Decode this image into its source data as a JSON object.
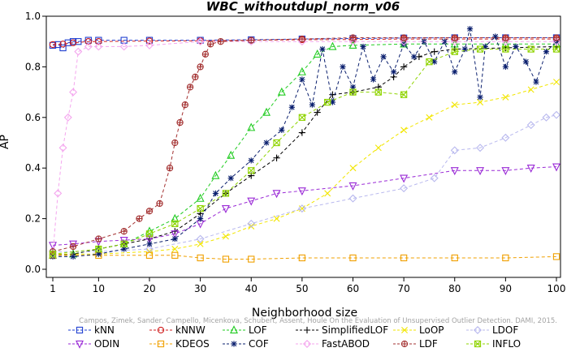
{
  "chart_data": {
    "type": "line",
    "title": "WBC_withoutdupl_norm_v06",
    "xlabel": "Neighborhood size",
    "ylabel": "AP",
    "xlim": [
      1,
      100
    ],
    "ylim": [
      0,
      1
    ],
    "xticks": [
      1,
      10,
      20,
      30,
      40,
      50,
      60,
      70,
      80,
      90,
      100
    ],
    "yticks": [
      0.0,
      0.2,
      0.4,
      0.6,
      0.8,
      1.0
    ],
    "xtick_labels": [
      "1",
      "10",
      "20",
      "30",
      "40",
      "50",
      "60",
      "70",
      "80",
      "90",
      "100"
    ],
    "ytick_labels": [
      "0.0",
      "0.2",
      "0.4",
      "0.6",
      "0.8",
      "1.0"
    ],
    "grid": false,
    "legend_position": "bottom",
    "watermark": "Campos, Zimek, Sander, Campello, Micenkova, Schubert, Assent, Houle On the Evaluation of Unsupervised Outlier Detection. DAMI, 2015.",
    "series": [
      {
        "name": "kNN",
        "color": "#1f3fd0",
        "marker": "square",
        "points": [
          [
            1,
            0.885
          ],
          [
            2,
            0.888
          ],
          [
            3,
            0.875
          ],
          [
            4,
            0.895
          ],
          [
            5,
            0.9
          ],
          [
            6,
            0.9
          ],
          [
            8,
            0.905
          ],
          [
            10,
            0.905
          ],
          [
            15,
            0.905
          ],
          [
            20,
            0.905
          ],
          [
            30,
            0.905
          ],
          [
            40,
            0.907
          ],
          [
            50,
            0.91
          ],
          [
            60,
            0.912
          ],
          [
            70,
            0.914
          ],
          [
            80,
            0.915
          ],
          [
            90,
            0.915
          ],
          [
            100,
            0.915
          ]
        ]
      },
      {
        "name": "kNNW",
        "color": "#d01f1f",
        "marker": "circle",
        "points": [
          [
            1,
            0.888
          ],
          [
            3,
            0.89
          ],
          [
            5,
            0.895
          ],
          [
            8,
            0.9
          ],
          [
            10,
            0.9
          ],
          [
            20,
            0.902
          ],
          [
            30,
            0.903
          ],
          [
            40,
            0.905
          ],
          [
            50,
            0.907
          ],
          [
            60,
            0.908
          ],
          [
            70,
            0.91
          ],
          [
            80,
            0.91
          ],
          [
            90,
            0.91
          ],
          [
            100,
            0.91
          ]
        ]
      },
      {
        "name": "LOF",
        "color": "#22cc22",
        "marker": "triangle-up",
        "points": [
          [
            1,
            0.055
          ],
          [
            5,
            0.06
          ],
          [
            10,
            0.08
          ],
          [
            15,
            0.1
          ],
          [
            20,
            0.15
          ],
          [
            25,
            0.2
          ],
          [
            30,
            0.28
          ],
          [
            33,
            0.37
          ],
          [
            36,
            0.45
          ],
          [
            40,
            0.56
          ],
          [
            43,
            0.62
          ],
          [
            46,
            0.7
          ],
          [
            50,
            0.78
          ],
          [
            53,
            0.85
          ],
          [
            56,
            0.88
          ],
          [
            60,
            0.885
          ],
          [
            70,
            0.89
          ],
          [
            80,
            0.89
          ],
          [
            90,
            0.89
          ],
          [
            100,
            0.89
          ]
        ]
      },
      {
        "name": "SimplifiedLOF",
        "color": "#000000",
        "marker": "plus",
        "points": [
          [
            1,
            0.055
          ],
          [
            5,
            0.06
          ],
          [
            10,
            0.08
          ],
          [
            15,
            0.1
          ],
          [
            20,
            0.12
          ],
          [
            25,
            0.15
          ],
          [
            30,
            0.22
          ],
          [
            35,
            0.3
          ],
          [
            40,
            0.37
          ],
          [
            45,
            0.44
          ],
          [
            50,
            0.54
          ],
          [
            53,
            0.62
          ],
          [
            56,
            0.69
          ],
          [
            60,
            0.7
          ],
          [
            65,
            0.72
          ],
          [
            68,
            0.76
          ],
          [
            70,
            0.8
          ],
          [
            73,
            0.84
          ],
          [
            76,
            0.86
          ],
          [
            80,
            0.87
          ],
          [
            90,
            0.875
          ],
          [
            100,
            0.88
          ]
        ]
      },
      {
        "name": "LoOP",
        "color": "#f2e600",
        "marker": "x",
        "points": [
          [
            1,
            0.06
          ],
          [
            10,
            0.06
          ],
          [
            20,
            0.07
          ],
          [
            25,
            0.08
          ],
          [
            30,
            0.1
          ],
          [
            35,
            0.13
          ],
          [
            40,
            0.17
          ],
          [
            45,
            0.2
          ],
          [
            50,
            0.24
          ],
          [
            55,
            0.3
          ],
          [
            60,
            0.4
          ],
          [
            65,
            0.48
          ],
          [
            70,
            0.55
          ],
          [
            75,
            0.6
          ],
          [
            80,
            0.65
          ],
          [
            85,
            0.66
          ],
          [
            90,
            0.68
          ],
          [
            95,
            0.71
          ],
          [
            100,
            0.74
          ]
        ]
      },
      {
        "name": "LDOF",
        "color": "#b8b8ee",
        "marker": "diamond",
        "points": [
          [
            1,
            0.07
          ],
          [
            10,
            0.07
          ],
          [
            20,
            0.08
          ],
          [
            30,
            0.12
          ],
          [
            40,
            0.18
          ],
          [
            50,
            0.24
          ],
          [
            60,
            0.28
          ],
          [
            70,
            0.32
          ],
          [
            76,
            0.36
          ],
          [
            80,
            0.47
          ],
          [
            85,
            0.48
          ],
          [
            90,
            0.52
          ],
          [
            95,
            0.57
          ],
          [
            98,
            0.6
          ],
          [
            100,
            0.61
          ]
        ]
      },
      {
        "name": "ODIN",
        "color": "#9a2ad6",
        "marker": "triangle-down",
        "points": [
          [
            1,
            0.095
          ],
          [
            5,
            0.1
          ],
          [
            10,
            0.11
          ],
          [
            15,
            0.115
          ],
          [
            20,
            0.12
          ],
          [
            25,
            0.14
          ],
          [
            30,
            0.18
          ],
          [
            35,
            0.24
          ],
          [
            40,
            0.27
          ],
          [
            45,
            0.3
          ],
          [
            50,
            0.31
          ],
          [
            60,
            0.33
          ],
          [
            70,
            0.36
          ],
          [
            80,
            0.39
          ],
          [
            85,
            0.39
          ],
          [
            90,
            0.39
          ],
          [
            95,
            0.4
          ],
          [
            100,
            0.405
          ]
        ]
      },
      {
        "name": "KDEOS",
        "color": "#f0a000",
        "marker": "square",
        "points": [
          [
            1,
            0.055
          ],
          [
            10,
            0.055
          ],
          [
            20,
            0.055
          ],
          [
            25,
            0.055
          ],
          [
            30,
            0.045
          ],
          [
            35,
            0.04
          ],
          [
            40,
            0.04
          ],
          [
            50,
            0.045
          ],
          [
            60,
            0.045
          ],
          [
            70,
            0.045
          ],
          [
            80,
            0.045
          ],
          [
            90,
            0.045
          ],
          [
            100,
            0.05
          ]
        ]
      },
      {
        "name": "COF",
        "color": "#0a1f6e",
        "marker": "star",
        "points": [
          [
            1,
            0.05
          ],
          [
            5,
            0.05
          ],
          [
            10,
            0.06
          ],
          [
            15,
            0.08
          ],
          [
            20,
            0.1
          ],
          [
            25,
            0.12
          ],
          [
            30,
            0.2
          ],
          [
            33,
            0.3
          ],
          [
            36,
            0.36
          ],
          [
            40,
            0.43
          ],
          [
            43,
            0.5
          ],
          [
            46,
            0.55
          ],
          [
            48,
            0.64
          ],
          [
            50,
            0.75
          ],
          [
            52,
            0.65
          ],
          [
            54,
            0.87
          ],
          [
            56,
            0.66
          ],
          [
            58,
            0.8
          ],
          [
            60,
            0.72
          ],
          [
            62,
            0.88
          ],
          [
            64,
            0.75
          ],
          [
            66,
            0.84
          ],
          [
            68,
            0.78
          ],
          [
            70,
            0.89
          ],
          [
            72,
            0.84
          ],
          [
            74,
            0.9
          ],
          [
            76,
            0.82
          ],
          [
            78,
            0.9
          ],
          [
            80,
            0.78
          ],
          [
            82,
            0.87
          ],
          [
            83,
            0.95
          ],
          [
            85,
            0.68
          ],
          [
            86,
            0.88
          ],
          [
            88,
            0.92
          ],
          [
            90,
            0.8
          ],
          [
            92,
            0.88
          ],
          [
            94,
            0.82
          ],
          [
            96,
            0.74
          ],
          [
            98,
            0.86
          ],
          [
            100,
            0.9
          ]
        ]
      },
      {
        "name": "FastABOD",
        "color": "#f4a6ee",
        "marker": "diamond",
        "points": [
          [
            1,
            0.06
          ],
          [
            2,
            0.3
          ],
          [
            3,
            0.48
          ],
          [
            4,
            0.6
          ],
          [
            5,
            0.7
          ],
          [
            6,
            0.86
          ],
          [
            8,
            0.88
          ],
          [
            10,
            0.88
          ],
          [
            15,
            0.88
          ],
          [
            20,
            0.885
          ],
          [
            30,
            0.9
          ],
          [
            40,
            0.9
          ],
          [
            50,
            0.9
          ],
          [
            60,
            0.9
          ],
          [
            70,
            0.9
          ],
          [
            80,
            0.9
          ],
          [
            90,
            0.9
          ],
          [
            100,
            0.9
          ]
        ]
      },
      {
        "name": "LDF",
        "color": "#a33030",
        "marker": "circle-plus",
        "points": [
          [
            1,
            0.07
          ],
          [
            5,
            0.09
          ],
          [
            10,
            0.12
          ],
          [
            15,
            0.15
          ],
          [
            18,
            0.2
          ],
          [
            20,
            0.23
          ],
          [
            22,
            0.26
          ],
          [
            24,
            0.4
          ],
          [
            25,
            0.5
          ],
          [
            26,
            0.58
          ],
          [
            27,
            0.65
          ],
          [
            28,
            0.72
          ],
          [
            29,
            0.76
          ],
          [
            30,
            0.8
          ],
          [
            31,
            0.85
          ],
          [
            32,
            0.89
          ],
          [
            34,
            0.9
          ],
          [
            40,
            0.905
          ],
          [
            50,
            0.91
          ],
          [
            60,
            0.915
          ],
          [
            70,
            0.915
          ],
          [
            80,
            0.915
          ],
          [
            90,
            0.915
          ],
          [
            100,
            0.915
          ]
        ]
      },
      {
        "name": "INFLO",
        "color": "#8fd400",
        "marker": "square-x",
        "points": [
          [
            1,
            0.06
          ],
          [
            10,
            0.08
          ],
          [
            15,
            0.1
          ],
          [
            20,
            0.14
          ],
          [
            25,
            0.18
          ],
          [
            30,
            0.24
          ],
          [
            35,
            0.3
          ],
          [
            40,
            0.39
          ],
          [
            45,
            0.5
          ],
          [
            50,
            0.6
          ],
          [
            55,
            0.66
          ],
          [
            60,
            0.7
          ],
          [
            65,
            0.7
          ],
          [
            70,
            0.69
          ],
          [
            75,
            0.82
          ],
          [
            80,
            0.86
          ],
          [
            85,
            0.87
          ],
          [
            90,
            0.87
          ],
          [
            95,
            0.87
          ],
          [
            100,
            0.87
          ]
        ]
      }
    ]
  }
}
